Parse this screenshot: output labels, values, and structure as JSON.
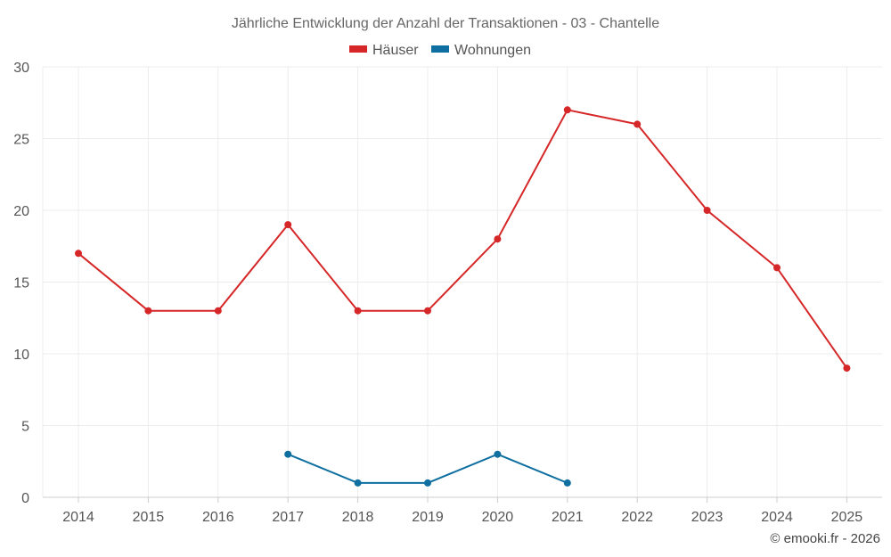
{
  "chart_data": {
    "type": "line",
    "title": "Jährliche Entwicklung der Anzahl der Transaktionen - 03 - Chantelle",
    "xlabel": "",
    "ylabel": "",
    "categories": [
      "2014",
      "2015",
      "2016",
      "2017",
      "2018",
      "2019",
      "2020",
      "2021",
      "2022",
      "2023",
      "2024",
      "2025"
    ],
    "y_ticks": [
      "0",
      "5",
      "10",
      "15",
      "20",
      "25",
      "30"
    ],
    "ylim": [
      0,
      30
    ],
    "grid": true,
    "legend_position": "top-center",
    "series": [
      {
        "name": "Häuser",
        "color": "#d62728",
        "values": [
          17,
          13,
          13,
          19,
          13,
          13,
          18,
          27,
          26,
          20,
          16,
          9
        ]
      },
      {
        "name": "Wohnungen",
        "color": "#0f6fa0",
        "values": [
          null,
          null,
          null,
          3,
          1,
          1,
          3,
          1,
          null,
          null,
          null,
          null
        ]
      }
    ]
  },
  "credit": "© emooki.fr - 2026"
}
